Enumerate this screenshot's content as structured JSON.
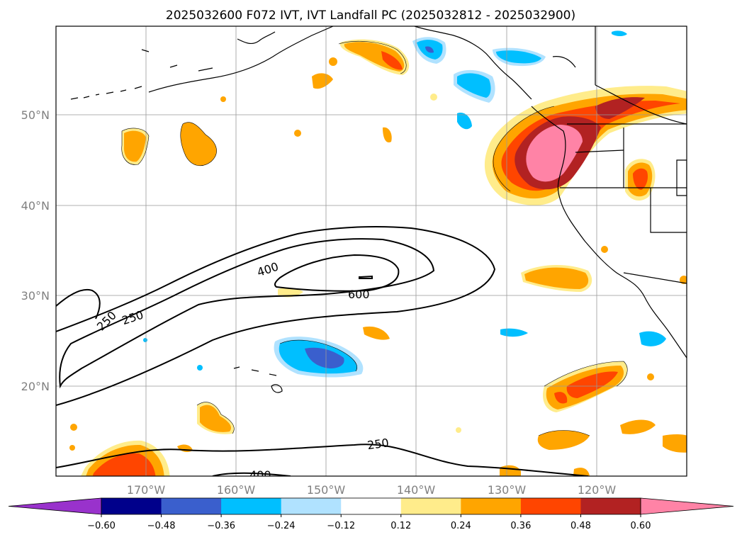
{
  "title": "2025032600 F072 IVT, IVT Landfall PC (2025032812 - 2025032900)",
  "lat_labels": [
    "50°N",
    "40°N",
    "30°N",
    "20°N"
  ],
  "lon_labels": [
    "170°W",
    "160°W",
    "150°W",
    "140°W",
    "130°W",
    "120°W"
  ],
  "colorbar": {
    "ticks": [
      "−0.60",
      "−0.48",
      "−0.36",
      "−0.24",
      "−0.12",
      "0.12",
      "0.24",
      "0.36",
      "0.48",
      "0.60"
    ],
    "colors": [
      "#9932cc",
      "#00008b",
      "#3a5fcd",
      "#00bfff",
      "#b0e2ff",
      "#ffffff",
      "#ffec8b",
      "#ffa500",
      "#ff4500",
      "#b22222",
      "#ff83a6"
    ]
  },
  "contour_labels": [
    "250",
    "250",
    "400",
    "600",
    "250",
    "400"
  ],
  "colors": {
    "pink": "#ff83a6",
    "dark_red": "#b22222",
    "red_orange": "#ff4500",
    "orange": "#ffa500",
    "light_yellow": "#ffec8b",
    "light_blue": "#b0e2ff",
    "deep_sky": "#00bfff",
    "royal_blue": "#3a5fcd"
  }
}
